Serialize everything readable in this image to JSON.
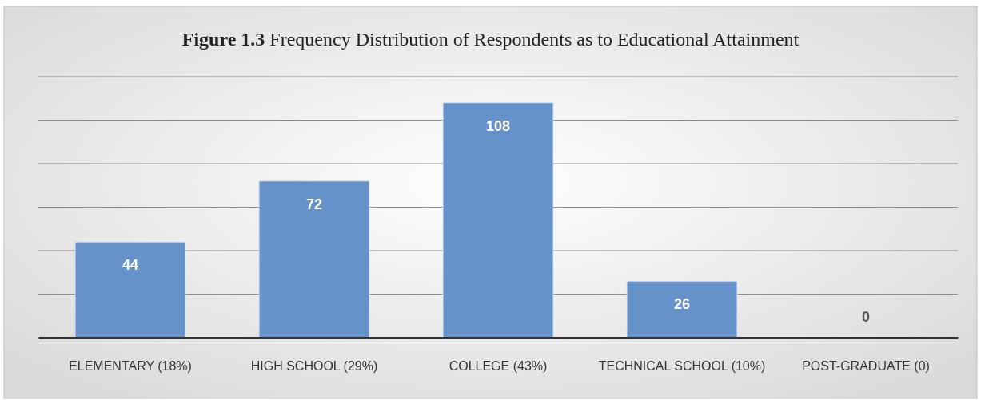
{
  "chart_data": {
    "type": "bar",
    "title": "Figure 1.3 Frequency Distribution of Respondents as to Educational Attainment",
    "categories": [
      "ELEMENTARY (18%)",
      "HIGH SCHOOL (29%)",
      "COLLEGE (43%)",
      "TECHNICAL SCHOOL (10%)",
      "POST-GRADUATE (0)"
    ],
    "values": [
      44,
      72,
      108,
      26,
      0
    ],
    "color": "#6593c9",
    "ylim": [
      0,
      120
    ],
    "yticks": [
      {
        "value": 0,
        "label": null
      },
      {
        "value": 20,
        "label": null
      },
      {
        "value": 40,
        "label": null
      },
      {
        "value": 60,
        "label": null
      },
      {
        "value": 80,
        "label": null
      },
      {
        "value": 100,
        "label": null
      },
      {
        "value": 120,
        "label": null
      }
    ],
    "tick_labels": "x",
    "grid": "y",
    "data_labels": true
  }
}
